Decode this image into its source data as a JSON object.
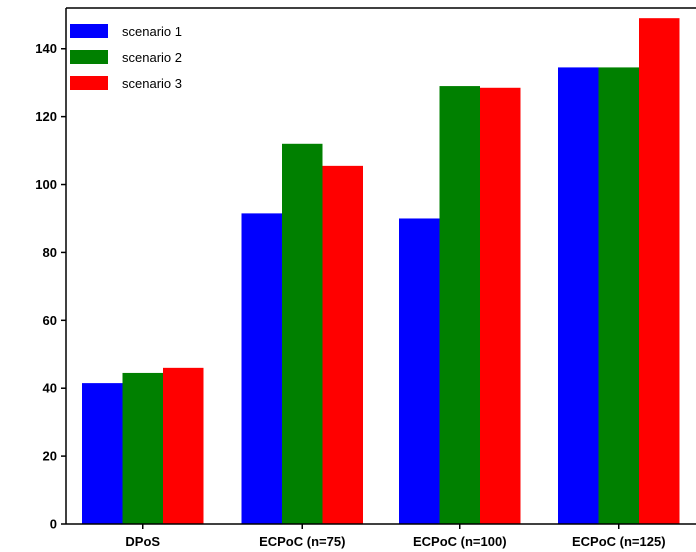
{
  "chart_data": {
    "type": "bar",
    "categories": [
      "DPoS",
      "ECPoC (n=75)",
      "ECPoC (n=100)",
      "ECPoC (n=125)"
    ],
    "series": [
      {
        "name": "scenario 1",
        "color": "#0000ff",
        "values": [
          41.5,
          91.5,
          90.0,
          134.5
        ]
      },
      {
        "name": "scenario 2",
        "color": "#008000",
        "values": [
          44.5,
          112.0,
          129.0,
          134.5
        ]
      },
      {
        "name": "scenario 3",
        "color": "#ff0000",
        "values": [
          46.0,
          105.5,
          128.5,
          149.0
        ]
      }
    ],
    "ylim": [
      0,
      152
    ],
    "yticks": [
      "0",
      "20",
      "40",
      "60",
      "80",
      "100",
      "120",
      "140"
    ],
    "title": "",
    "xlabel": "",
    "ylabel": "",
    "legend_position": "top-left",
    "grid": false
  }
}
